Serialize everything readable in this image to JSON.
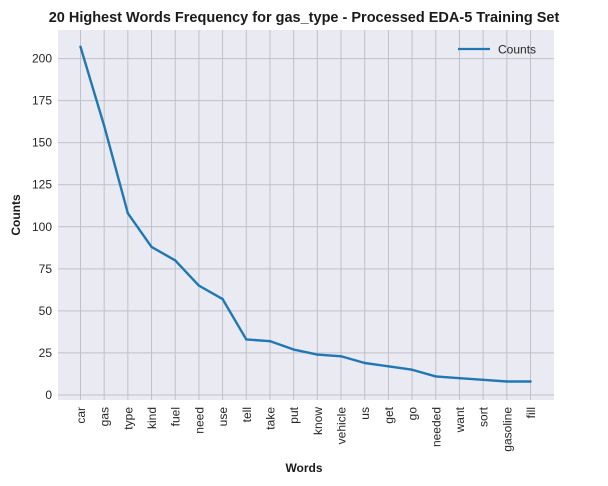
{
  "chart_data": {
    "type": "line",
    "title": "20 Highest Words Frequency for gas_type - Processed EDA-5 Training Set",
    "xlabel": "Words",
    "ylabel": "Counts",
    "categories": [
      "car",
      "gas",
      "type",
      "kind",
      "fuel",
      "need",
      "use",
      "tell",
      "take",
      "put",
      "know",
      "vehicle",
      "us",
      "get",
      "go",
      "needed",
      "want",
      "sort",
      "gasoline",
      "fill"
    ],
    "series": [
      {
        "name": "Counts",
        "values": [
          207,
          160,
          108,
          88,
          80,
          65,
          57,
          33,
          32,
          27,
          24,
          23,
          19,
          17,
          15,
          11,
          10,
          9,
          8,
          8
        ]
      }
    ],
    "ylim": [
      -3,
      217
    ],
    "yticks": [
      0,
      25,
      50,
      75,
      100,
      125,
      150,
      175,
      200
    ],
    "grid": true,
    "legend": "top-right",
    "colors": {
      "line": "#1f77b4",
      "plot_bg": "#eaeaf2",
      "grid": "#c0c0c8"
    }
  }
}
